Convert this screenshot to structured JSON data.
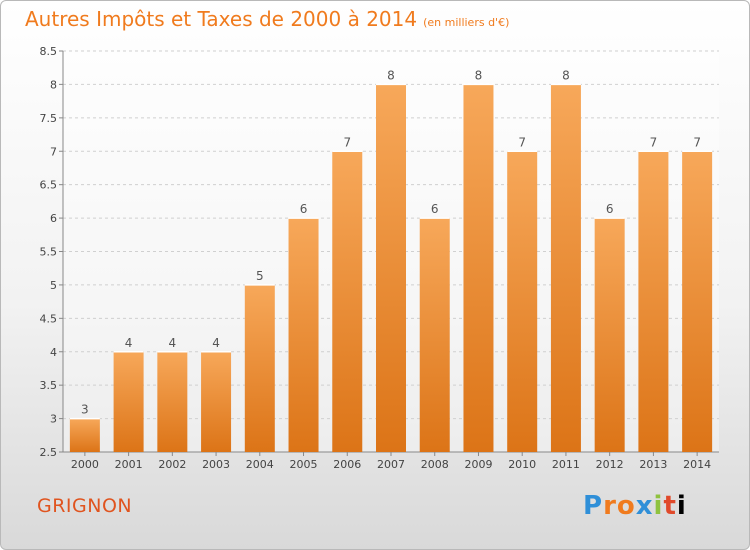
{
  "header": {
    "title": "Autres Impôts et Taxes de 2000 à 2014",
    "unit": "(en milliers d'€)"
  },
  "footer": {
    "city": "GRIGNON",
    "logo": [
      "P",
      "r",
      "o",
      "x",
      "i",
      "t",
      "i"
    ]
  },
  "colors": {
    "bar_light": "#f7a85a",
    "bar_dark": "#dc7417",
    "title": "#f07b1e",
    "city": "#e0541f"
  },
  "chart_data": {
    "type": "bar",
    "title": "Autres Impôts et Taxes de 2000 à 2014",
    "xlabel": "",
    "ylabel": "",
    "categories": [
      "2000",
      "2001",
      "2002",
      "2003",
      "2004",
      "2005",
      "2006",
      "2007",
      "2008",
      "2009",
      "2010",
      "2011",
      "2012",
      "2013",
      "2014"
    ],
    "values": [
      3,
      4,
      4,
      4,
      5,
      6,
      7,
      8,
      6,
      8,
      7,
      8,
      6,
      7,
      7
    ],
    "labels": [
      "3",
      "4",
      "4",
      "4",
      "5",
      "6",
      "7",
      "8",
      "6",
      "8",
      "7",
      "8",
      "6",
      "7",
      "7"
    ],
    "ylim": [
      2.5,
      8.5
    ],
    "yticks": [
      "2.5",
      "3",
      "3.5",
      "4",
      "4.5",
      "5",
      "5.5",
      "6",
      "6.5",
      "7",
      "7.5",
      "8",
      "8.5"
    ],
    "grid": true,
    "legend": "none"
  }
}
